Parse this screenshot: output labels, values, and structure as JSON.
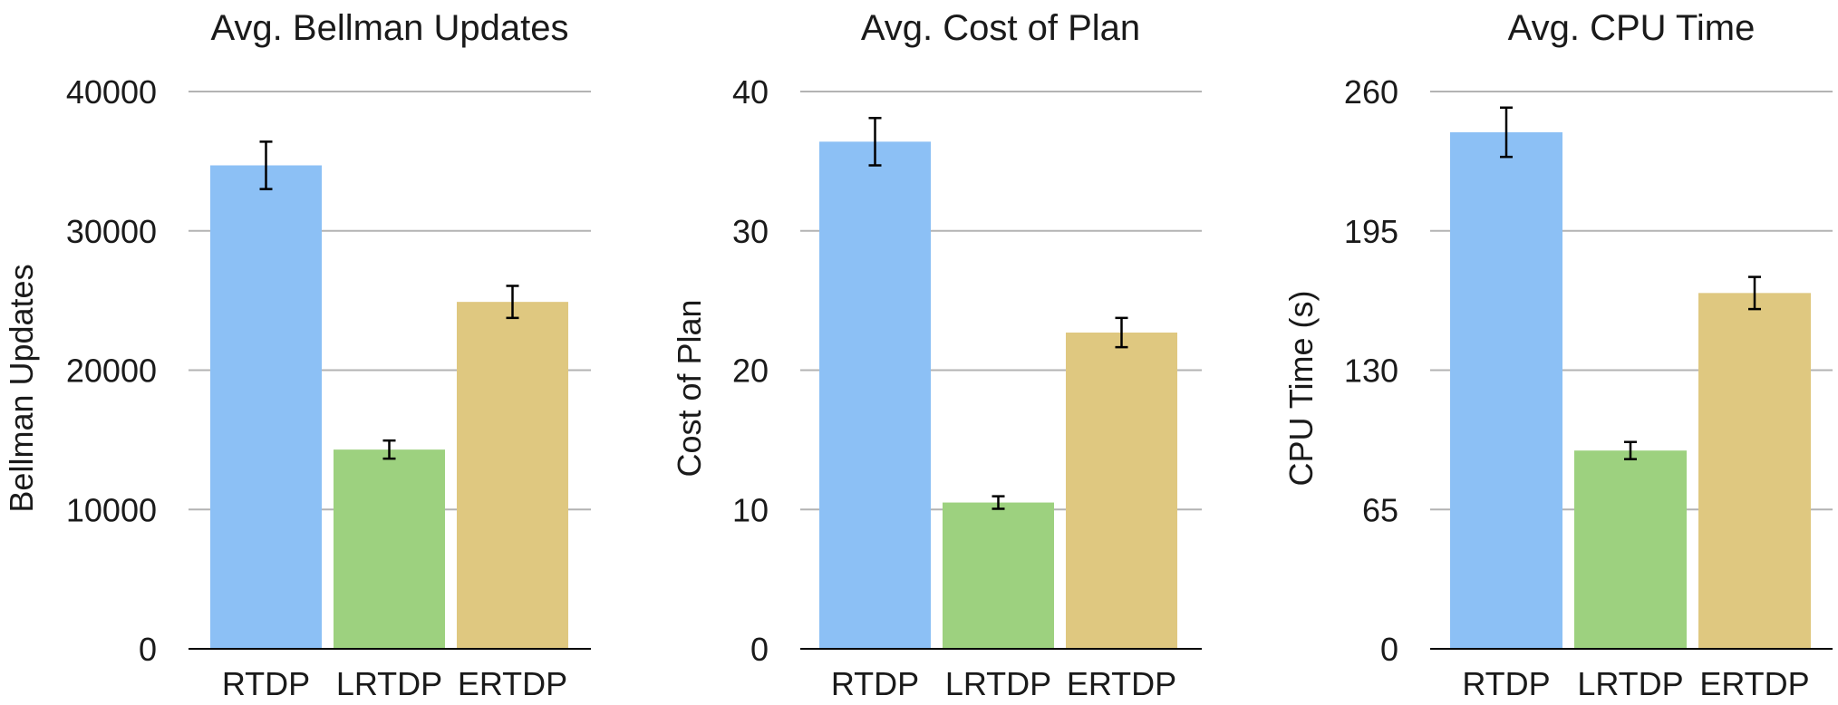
{
  "chart_data": [
    {
      "type": "bar",
      "title": "Avg. Bellman Updates",
      "xlabel": "",
      "ylabel": "Bellman Updates",
      "categories": [
        "RTDP",
        "LRTDP",
        "ERTDP"
      ],
      "values": [
        34700,
        14300,
        24900
      ],
      "errors": [
        1700,
        650,
        1150
      ],
      "yticks": [
        0,
        10000,
        20000,
        30000,
        40000
      ],
      "ylim": [
        0,
        40000
      ],
      "grid": true,
      "colors": [
        "#8cc0f5",
        "#9dd17f",
        "#dfc880"
      ]
    },
    {
      "type": "bar",
      "title": "Avg. Cost of Plan",
      "xlabel": "",
      "ylabel": "Cost of Plan",
      "categories": [
        "RTDP",
        "LRTDP",
        "ERTDP"
      ],
      "values": [
        36.4,
        10.5,
        22.7
      ],
      "errors": [
        1.7,
        0.45,
        1.05
      ],
      "yticks": [
        0,
        10,
        20,
        30,
        40
      ],
      "ylim": [
        0,
        40
      ],
      "grid": true,
      "colors": [
        "#8cc0f5",
        "#9dd17f",
        "#dfc880"
      ]
    },
    {
      "type": "bar",
      "title": "Avg. CPU Time",
      "xlabel": "",
      "ylabel": "CPU Time (s)",
      "categories": [
        "RTDP",
        "LRTDP",
        "ERTDP"
      ],
      "values": [
        241,
        92.5,
        166
      ],
      "errors": [
        11.5,
        4,
        7.5
      ],
      "yticks": [
        0,
        65,
        130,
        195,
        260
      ],
      "ylim": [
        0,
        260
      ],
      "grid": true,
      "colors": [
        "#8cc0f5",
        "#9dd17f",
        "#dfc880"
      ]
    }
  ]
}
